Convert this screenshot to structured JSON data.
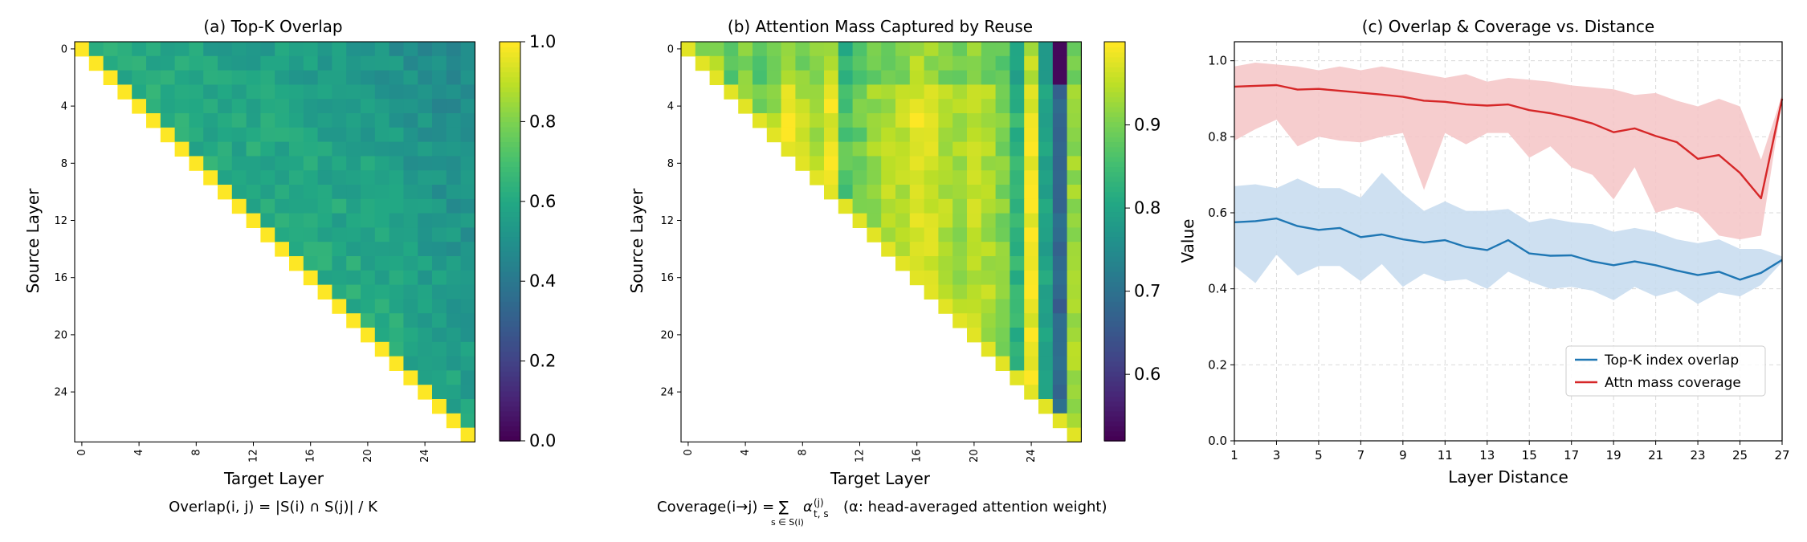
{
  "chart_data": [
    {
      "type": "heatmap",
      "title": "(a) Top-K Overlap",
      "xlabel": "Target Layer",
      "ylabel": "Source Layer",
      "tick_labels": [
        "0",
        "4",
        "8",
        "12",
        "16",
        "20",
        "24"
      ],
      "colorbar_ticks": [
        "0.0",
        "0.2",
        "0.4",
        "0.6",
        "0.8",
        "1.0"
      ],
      "colorbar_range": [
        0.0,
        1.0
      ],
      "colormap": "viridis",
      "formula": "Overlap(i, j) = |S(i) ∩ S(j)| / K",
      "size": 28,
      "values_note_rows": [
        [
          1.0,
          0.58,
          0.57,
          0.57,
          0.56,
          0.57,
          0.55,
          0.55,
          0.54,
          0.53,
          0.55,
          0.53,
          0.53,
          0.53,
          0.52,
          0.52,
          0.54,
          0.52,
          0.51,
          0.53,
          0.51,
          0.53,
          0.51,
          0.5,
          0.51,
          0.5,
          0.52,
          0.51
        ],
        [
          null,
          1.0,
          0.55,
          0.55,
          0.53,
          0.54,
          0.55,
          0.54,
          0.53,
          0.53,
          0.54,
          0.53,
          0.52,
          0.53,
          0.52,
          0.53,
          0.52,
          0.52,
          0.51,
          0.51,
          0.5,
          0.51,
          0.5,
          0.51,
          0.51,
          0.51,
          0.5,
          0.5
        ]
      ],
      "diagonal": 1.0,
      "typical_range": [
        0.43,
        0.68
      ]
    },
    {
      "type": "heatmap",
      "title": "(b) Attention Mass Captured by Reuse",
      "xlabel": "Target Layer",
      "ylabel": "Source Layer",
      "tick_labels": [
        "0",
        "4",
        "8",
        "12",
        "16",
        "20",
        "24"
      ],
      "colorbar_ticks": [
        "0.6",
        "0.7",
        "0.8",
        "0.9"
      ],
      "colorbar_range": [
        0.52,
        1.0
      ],
      "colormap": "viridis",
      "formula_prefix": "Coverage(i→j) = ∑",
      "formula_sub": "s ∈ S(i)",
      "formula_term": "α",
      "formula_term_sup": "(j)",
      "formula_term_sub": "t, s",
      "formula_suffix": "(α: head-averaged attention weight)",
      "size": 28,
      "diagonal": 0.98
    },
    {
      "type": "line",
      "title": "(c) Overlap & Coverage vs. Distance",
      "xlabel": "Layer Distance",
      "ylabel": "Value",
      "x": [
        1,
        2,
        3,
        4,
        5,
        6,
        7,
        8,
        9,
        10,
        11,
        12,
        13,
        14,
        15,
        16,
        17,
        18,
        19,
        20,
        21,
        22,
        23,
        24,
        25,
        26,
        27
      ],
      "xticks": [
        "1",
        "3",
        "5",
        "7",
        "9",
        "11",
        "13",
        "15",
        "17",
        "19",
        "21",
        "23",
        "25",
        "27"
      ],
      "yticks": [
        "0.0",
        "0.2",
        "0.4",
        "0.6",
        "0.8",
        "1.0"
      ],
      "ylim": [
        0.0,
        1.05
      ],
      "xlim": [
        1,
        27
      ],
      "grid": true,
      "legend_position": "center-right",
      "series": [
        {
          "name": "Top-K index overlap",
          "color": "#1f77b4",
          "band_color": "#c6dbef",
          "values": [
            0.575,
            0.578,
            0.585,
            0.565,
            0.555,
            0.56,
            0.536,
            0.543,
            0.53,
            0.522,
            0.528,
            0.51,
            0.502,
            0.528,
            0.493,
            0.487,
            0.488,
            0.472,
            0.462,
            0.472,
            0.462,
            0.448,
            0.436,
            0.445,
            0.424,
            0.442,
            0.476
          ],
          "upper": [
            0.67,
            0.675,
            0.665,
            0.69,
            0.665,
            0.665,
            0.64,
            0.705,
            0.65,
            0.605,
            0.63,
            0.605,
            0.605,
            0.61,
            0.575,
            0.585,
            0.575,
            0.57,
            0.55,
            0.56,
            0.55,
            0.53,
            0.52,
            0.53,
            0.505,
            0.505,
            0.485
          ],
          "lower": [
            0.46,
            0.415,
            0.49,
            0.435,
            0.46,
            0.46,
            0.42,
            0.465,
            0.405,
            0.44,
            0.42,
            0.425,
            0.4,
            0.445,
            0.42,
            0.4,
            0.405,
            0.395,
            0.37,
            0.405,
            0.38,
            0.395,
            0.36,
            0.39,
            0.38,
            0.41,
            0.47
          ]
        },
        {
          "name": "Attn mass coverage",
          "color": "#d62728",
          "band_color": "#f4c4c6",
          "values": [
            0.932,
            0.934,
            0.936,
            0.924,
            0.926,
            0.921,
            0.916,
            0.911,
            0.905,
            0.895,
            0.892,
            0.885,
            0.882,
            0.885,
            0.87,
            0.862,
            0.85,
            0.835,
            0.812,
            0.822,
            0.802,
            0.786,
            0.742,
            0.752,
            0.705,
            0.638,
            0.9
          ],
          "upper": [
            0.985,
            0.995,
            0.99,
            0.985,
            0.975,
            0.985,
            0.975,
            0.985,
            0.975,
            0.965,
            0.955,
            0.965,
            0.945,
            0.955,
            0.95,
            0.945,
            0.935,
            0.93,
            0.925,
            0.91,
            0.915,
            0.895,
            0.88,
            0.9,
            0.88,
            0.74,
            0.91
          ],
          "lower": [
            0.79,
            0.82,
            0.845,
            0.775,
            0.8,
            0.79,
            0.785,
            0.8,
            0.81,
            0.66,
            0.81,
            0.78,
            0.81,
            0.81,
            0.745,
            0.775,
            0.72,
            0.7,
            0.635,
            0.72,
            0.6,
            0.615,
            0.6,
            0.54,
            0.53,
            0.54,
            0.895
          ]
        }
      ]
    }
  ]
}
